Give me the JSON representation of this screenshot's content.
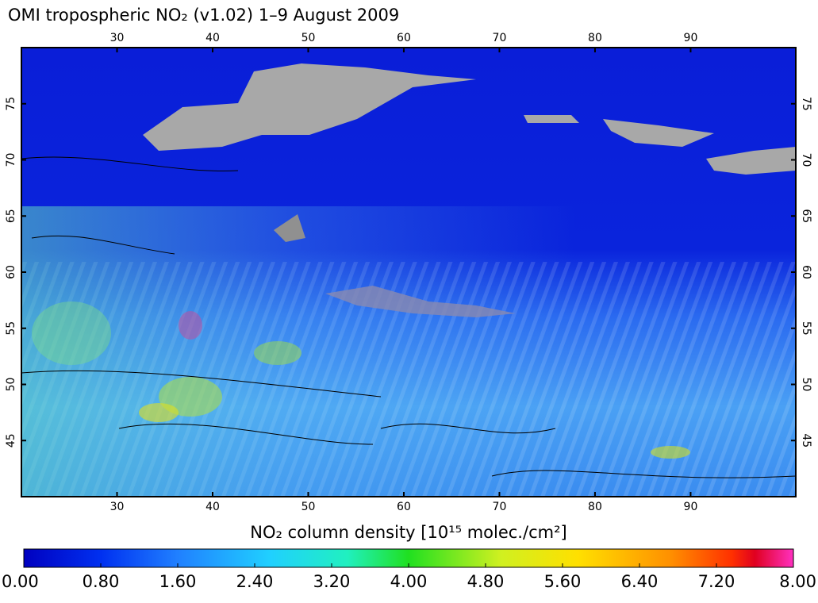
{
  "title": "OMI tropospheric NO₂ (v1.02) 1–9 August 2009",
  "map": {
    "lon_range": [
      20,
      101
    ],
    "lat_range": [
      40,
      80
    ],
    "lon_ticks": [
      30,
      40,
      50,
      60,
      70,
      80,
      90
    ],
    "lat_ticks": [
      45,
      50,
      55,
      60,
      65,
      70,
      75
    ]
  },
  "colorbar": {
    "label": "NO₂ column density [10¹⁵ molec./cm²]",
    "range": [
      0,
      8
    ],
    "ticks": [
      {
        "value": 0,
        "label": "0.00"
      },
      {
        "value": 0.8,
        "label": "0.80"
      },
      {
        "value": 1.6,
        "label": "1.60"
      },
      {
        "value": 2.4,
        "label": "2.40"
      },
      {
        "value": 3.2,
        "label": "3.20"
      },
      {
        "value": 4,
        "label": "4.00"
      },
      {
        "value": 4.8,
        "label": "4.80"
      },
      {
        "value": 5.6,
        "label": "5.60"
      },
      {
        "value": 6.4,
        "label": "6.40"
      },
      {
        "value": 7.2,
        "label": "7.20"
      },
      {
        "value": 8,
        "label": "8.00"
      }
    ]
  }
}
